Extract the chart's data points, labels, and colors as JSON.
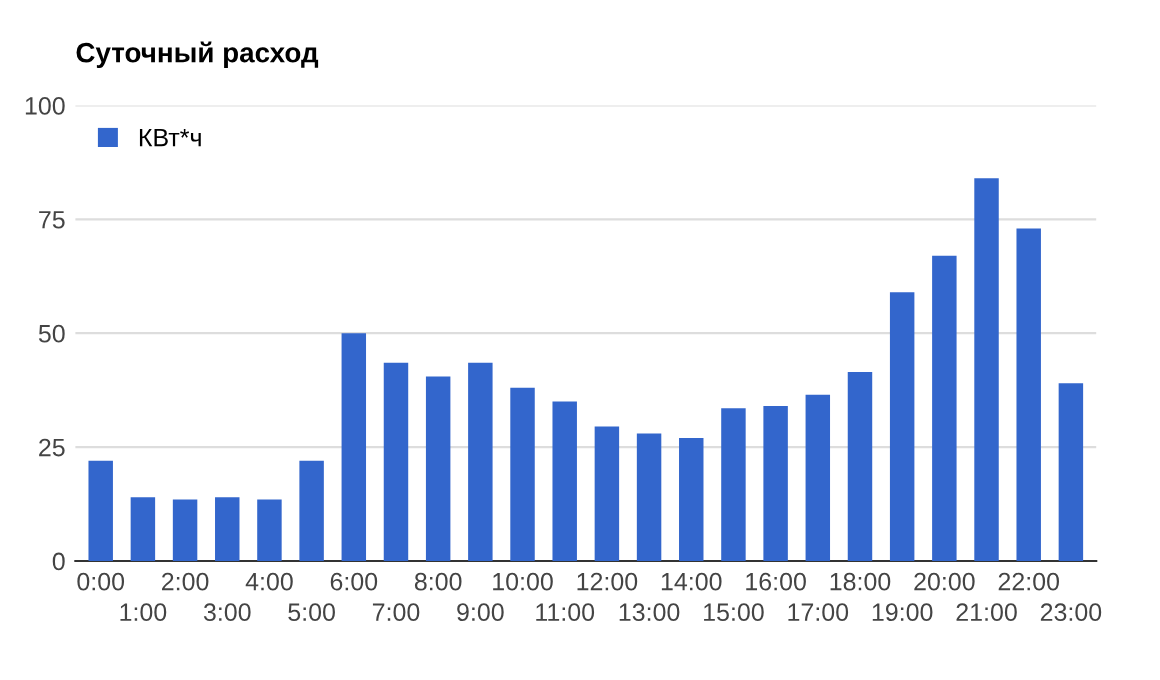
{
  "chart_data": {
    "type": "bar",
    "title": "Суточный расход",
    "categories": [
      "0:00",
      "1:00",
      "2:00",
      "3:00",
      "4:00",
      "5:00",
      "6:00",
      "7:00",
      "8:00",
      "9:00",
      "10:00",
      "11:00",
      "12:00",
      "13:00",
      "14:00",
      "15:00",
      "16:00",
      "17:00",
      "18:00",
      "19:00",
      "20:00",
      "21:00",
      "22:00",
      "23:00"
    ],
    "series": [
      {
        "name": "КВт*ч",
        "color": "#3366cc",
        "values": [
          22,
          14,
          13.5,
          14,
          13.5,
          22,
          50,
          43.5,
          40.5,
          43.5,
          38,
          35,
          29.5,
          28,
          27,
          33.5,
          34,
          36.5,
          41.5,
          59,
          67,
          84,
          73,
          39
        ]
      }
    ],
    "ylim": [
      0,
      100
    ],
    "yticks": [
      0,
      25,
      50,
      75,
      100
    ],
    "grid": "y",
    "legend": "top left"
  }
}
